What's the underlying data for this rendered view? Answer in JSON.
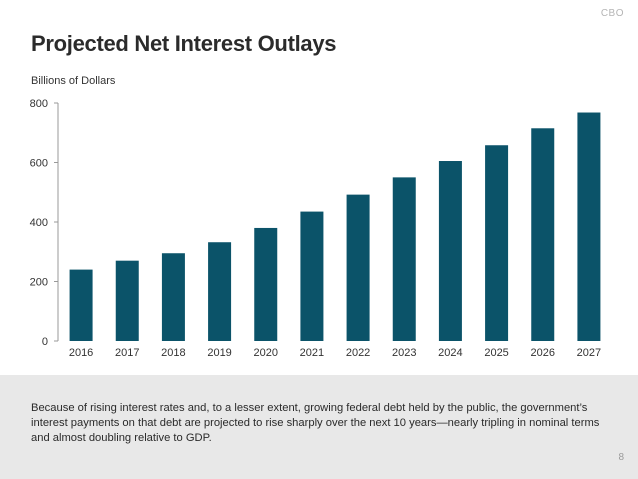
{
  "logo": "CBO",
  "title": "Projected Net Interest Outlays",
  "colors": {
    "bar": "#0b5369",
    "axis": "#999999",
    "footer_bg": "#e8e8e8"
  },
  "chart_data": {
    "type": "bar",
    "title": "Projected Net Interest Outlays",
    "ylabel": "Billions of Dollars",
    "xlabel": "",
    "categories": [
      "2016",
      "2017",
      "2018",
      "2019",
      "2020",
      "2021",
      "2022",
      "2023",
      "2024",
      "2025",
      "2026",
      "2027"
    ],
    "values": [
      240,
      270,
      295,
      332,
      380,
      435,
      492,
      550,
      605,
      658,
      715,
      768
    ],
    "ylim": [
      0,
      800
    ],
    "yticks": [
      0,
      200,
      400,
      600,
      800
    ],
    "grid": false,
    "legend": "none"
  },
  "footer": {
    "caption": "Because of rising interest rates and, to a lesser extent, growing federal debt held by the public, the government’s interest payments on that debt are projected to rise sharply over the next 10 years—nearly tripling in nominal terms and almost doubling relative to GDP.",
    "page_number": "8"
  }
}
